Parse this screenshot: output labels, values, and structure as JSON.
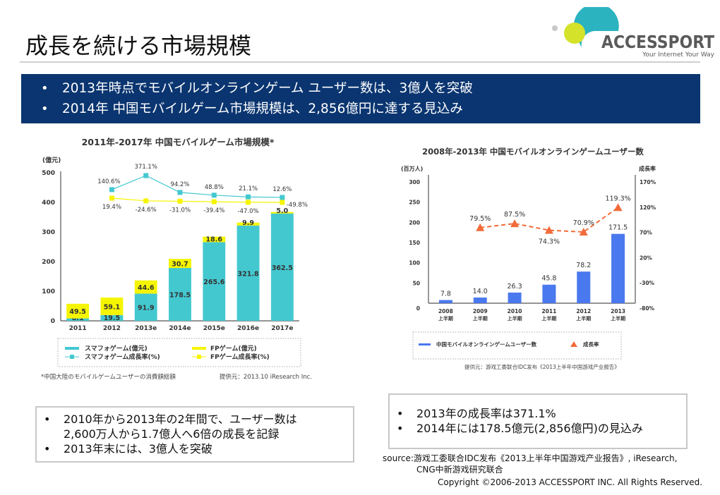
{
  "header": {
    "title": "成長を続ける市場規模",
    "logo": {
      "name": "ACCESSPORT",
      "tagline": "Your Internet Your Way",
      "colors": {
        "teal": "#2bb3c0",
        "lime": "#d4e22a",
        "gray": "#c8c8c8",
        "text": "#5a5a5a"
      }
    }
  },
  "banner": {
    "bullets": [
      "2013年時点でモバイルオンラインゲーム ユーザー数は、3億人を突破",
      "2014年 中国モバイルゲーム市場規模は、2,856億円に達する見込み"
    ],
    "background": "#0a3570"
  },
  "chart_data": [
    {
      "type": "bar",
      "stacked": true,
      "title": "2011年-2017年 中国モバイルゲーム市場規模*",
      "ylabel": "(億元)",
      "ylim": [
        0,
        500
      ],
      "yticks": [
        "0",
        "100",
        "200",
        "300",
        "400",
        "500"
      ],
      "categories": [
        "2011",
        "2012",
        "2013e",
        "2014e",
        "2015e",
        "2016e",
        "2017e"
      ],
      "series": [
        {
          "name": "スマフォゲーム(億元)",
          "color": "#44c8d0",
          "values": [
            8.1,
            19.5,
            91.9,
            178.5,
            265.6,
            321.8,
            362.5
          ]
        },
        {
          "name": "FPゲーム(億元)",
          "color": "#f5f500",
          "values": [
            49.5,
            59.1,
            44.6,
            30.7,
            18.6,
            9.9,
            5.0
          ]
        }
      ],
      "growth_series": [
        {
          "name": "スマフォゲーム成長率(%)",
          "color": "#44c8d0",
          "categories": [
            "2012",
            "2013e",
            "2014e",
            "2015e",
            "2016e",
            "2017e"
          ],
          "labels": [
            "140.6%",
            "371.1%",
            "94.2%",
            "48.8%",
            "21.1%",
            "12.6%"
          ],
          "values": [
            140.6,
            371.1,
            94.2,
            48.8,
            21.1,
            12.6
          ]
        },
        {
          "name": "FPゲーム成長率(%)",
          "color": "#f5f500",
          "categories": [
            "2012",
            "2013e",
            "2014e",
            "2015e",
            "2016e",
            "2017e"
          ],
          "labels": [
            "19.4%",
            "-24.6%",
            "-31.0%",
            "-39.4%",
            "-47.0%",
            "-49.8%"
          ],
          "values": [
            19.4,
            -24.6,
            -31.0,
            -39.4,
            -47.0,
            -49.8
          ]
        }
      ],
      "legend": {
        "placement": "bottom",
        "items": [
          "スマフォゲーム(億元)",
          "FPゲーム(億元)",
          "スマフォゲーム成長率(%)",
          "FPゲーム成長率(%)"
        ]
      },
      "footnote": "*中国大陸のモバイルゲームユーザーの消費額総額",
      "source": "提供元：2013.10 iResearch Inc.",
      "grid": false
    },
    {
      "type": "bar",
      "title": "2008年-2013年 中国モバイルオンラインゲームユーザー数",
      "ylabel": "(百万人)",
      "y2label": "成長率",
      "ylim": [
        0,
        300
      ],
      "yticks": [
        "0",
        "50",
        "100",
        "150",
        "200",
        "250",
        "300"
      ],
      "y2lim": [
        -80,
        170
      ],
      "y2ticks": [
        "-80%",
        "-30%",
        "20%",
        "70%",
        "120%",
        "170%"
      ],
      "categories": [
        "2008\n上半期",
        "2009\n上半期",
        "2010\n上半期",
        "2011\n上半期",
        "2012\n上半期",
        "2013\n上半期"
      ],
      "category_years": [
        "2008",
        "2009",
        "2010",
        "2011",
        "2012",
        "2013"
      ],
      "category_sub": "上半期",
      "series": [
        {
          "name": "中国モバイルオンラインゲームユーザー数",
          "color": "#4a78ee",
          "values": [
            7.8,
            14.0,
            26.3,
            45.8,
            78.2,
            171.5
          ],
          "labels": [
            "7.8",
            "14.0",
            "26.3",
            "45.8",
            "78.2",
            "171.5"
          ]
        }
      ],
      "growth_series": {
        "name": "成長率",
        "color": "#f26b3a",
        "style": "dashed",
        "categories": [
          "2009",
          "2010",
          "2011",
          "2012",
          "2013"
        ],
        "values": [
          79.5,
          87.5,
          74.3,
          70.9,
          119.3
        ],
        "labels": [
          "79.5%",
          "87.5%",
          "74.3%",
          "70.9%",
          "119.3%"
        ]
      },
      "legend": {
        "placement": "bottom",
        "items": [
          "中国モバイルオンラインゲームユーザー数",
          "成長率"
        ]
      },
      "source": "提供元：游戏工委联合IDC发布《2013上半年中国游戏产业报告》",
      "grid": false
    }
  ],
  "notes": {
    "left": [
      {
        "line1": "2010年から2013年の2年間で、ユーザー数は",
        "line2": "2,600万人から1.7億人へ6倍の成長を記録"
      },
      {
        "line1": "2013年末には、3億人を突破"
      }
    ],
    "right": [
      "2013年の成長率は371.1%",
      "2014年には178.5億元(2,856億円)の見込み"
    ],
    "bullet": "•"
  },
  "footer": {
    "source_line1": "source:游戏工委联合IDC发布《2013上半年中国游戏产业报告》, iResearch,",
    "source_line2": "CNG中新游戏研究联合",
    "copyright": "Copyright ©2006-2013  ACCESSPORT INC. All Rights Reserved."
  }
}
